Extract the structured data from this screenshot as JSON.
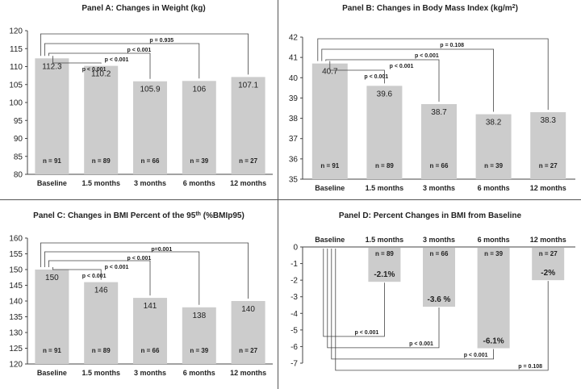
{
  "colors": {
    "bar": "#cccccc",
    "axis": "#444444",
    "text": "#222222",
    "bracket": "#444444"
  },
  "chart_data": [
    {
      "type": "bar",
      "title_text": "Panel A: Changes in Weight (kg)",
      "categories": [
        "Baseline",
        "1.5 months",
        "3 months",
        "6 months",
        "12 months"
      ],
      "values": [
        112.3,
        110.2,
        105.9,
        106,
        107.1
      ],
      "value_labels": [
        "112.3",
        "110.2",
        "105.9",
        "106",
        "107.1"
      ],
      "n_labels": [
        "n = 91",
        "n = 89",
        "n = 66",
        "n = 39",
        "n = 27"
      ],
      "ylim": [
        80,
        120
      ],
      "yticks": [
        80,
        85,
        90,
        95,
        100,
        105,
        110,
        115,
        120
      ],
      "comparisons": [
        {
          "to": 1,
          "label": "p < 0.001"
        },
        {
          "to": 2,
          "label": "p < 0.001"
        },
        {
          "to": 3,
          "label": "p < 0.001"
        },
        {
          "to": 4,
          "label": "p = 0.935"
        }
      ]
    },
    {
      "type": "bar",
      "title_text": "Panel B: Changes in Body Mass Index (kg/m",
      "title_sup": "2",
      "title_tail": ")",
      "categories": [
        "Baseline",
        "1.5 months",
        "3 months",
        "6 months",
        "12 months"
      ],
      "values": [
        40.7,
        39.6,
        38.7,
        38.2,
        38.3
      ],
      "value_labels": [
        "40.7",
        "39.6",
        "38.7",
        "38.2",
        "38.3"
      ],
      "n_labels": [
        "n = 91",
        "n = 89",
        "n = 66",
        "n = 39",
        "n = 27"
      ],
      "ylim": [
        35,
        42
      ],
      "yticks": [
        35,
        36,
        37,
        38,
        39,
        40,
        41,
        42
      ],
      "comparisons": [
        {
          "to": 1,
          "label": "p < 0.001"
        },
        {
          "to": 2,
          "label": "p < 0.001"
        },
        {
          "to": 3,
          "label": "p < 0.001"
        },
        {
          "to": 4,
          "label": "p = 0.108"
        }
      ]
    },
    {
      "type": "bar",
      "title_text": "Panel C: Changes in BMI Percent of the 95",
      "title_sup": "th",
      "title_tail": " (%BMIp95)",
      "categories": [
        "Baseline",
        "1.5 months",
        "3 months",
        "6 months",
        "12 months"
      ],
      "values": [
        150,
        146,
        141,
        138,
        140
      ],
      "value_labels": [
        "150",
        "146",
        "141",
        "138",
        "140"
      ],
      "n_labels": [
        "n = 91",
        "n = 89",
        "n = 66",
        "n = 39",
        "n = 27"
      ],
      "ylim": [
        120,
        160
      ],
      "yticks": [
        120,
        125,
        130,
        135,
        140,
        145,
        150,
        155,
        160
      ],
      "comparisons": [
        {
          "to": 1,
          "label": "p < 0.001"
        },
        {
          "to": 2,
          "label": "p < 0.001"
        },
        {
          "to": 3,
          "label": "p < 0.001"
        },
        {
          "to": 4,
          "label": "p=0.001"
        }
      ]
    },
    {
      "type": "bar",
      "title_text": "Panel D: Percent Changes in BMI from Baseline",
      "categories": [
        "Baseline",
        "1.5 months",
        "3 months",
        "6 months",
        "12 months"
      ],
      "values": [
        0,
        -2.1,
        -3.6,
        -6.1,
        -2
      ],
      "value_labels": [
        "",
        "-2.1%",
        "-3.6 %",
        "-6.1%",
        "-2%"
      ],
      "n_labels": [
        "",
        "n = 89",
        "n = 66",
        "n = 39",
        "n = 27"
      ],
      "ylim": [
        -7,
        0
      ],
      "yticks": [
        0,
        -1,
        -2,
        -3,
        -4,
        -5,
        -6,
        -7
      ],
      "comparisons": [
        {
          "to": 1,
          "label": "p < 0.001"
        },
        {
          "to": 2,
          "label": "p < 0.001"
        },
        {
          "to": 3,
          "label": "p < 0.001"
        },
        {
          "to": 4,
          "label": "p = 0.108"
        }
      ]
    }
  ]
}
